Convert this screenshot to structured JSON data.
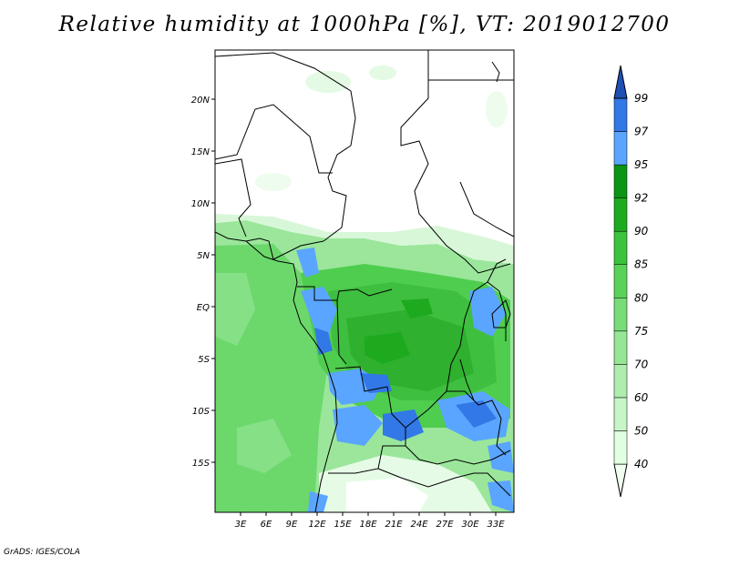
{
  "title": "Relative humidity at 1000hPa [%], VT: 2019012700",
  "credit": "GrADS: IGES/COLA",
  "map": {
    "region": "Central Africa",
    "lat_range": [
      -20,
      25
    ],
    "lon_range": [
      0,
      35
    ],
    "lat_ticks": [
      "20N",
      "15N",
      "10N",
      "5N",
      "EQ",
      "5S",
      "10S",
      "15S"
    ],
    "lon_ticks": [
      "3E",
      "6E",
      "9E",
      "12E",
      "15E",
      "18E",
      "21E",
      "24E",
      "27E",
      "30E",
      "33E"
    ]
  },
  "colorbar": {
    "levels": [
      "40",
      "50",
      "60",
      "70",
      "75",
      "80",
      "85",
      "90",
      "92",
      "95",
      "97",
      "99"
    ],
    "colors": [
      "#f0fff0",
      "#e1ffe1",
      "#c8f5c8",
      "#afedaf",
      "#96e696",
      "#78dc78",
      "#5ad25a",
      "#3cc33c",
      "#1eaa1e",
      "#0a9614",
      "#5aa5ff",
      "#3278e6",
      "#1e50b4"
    ]
  }
}
